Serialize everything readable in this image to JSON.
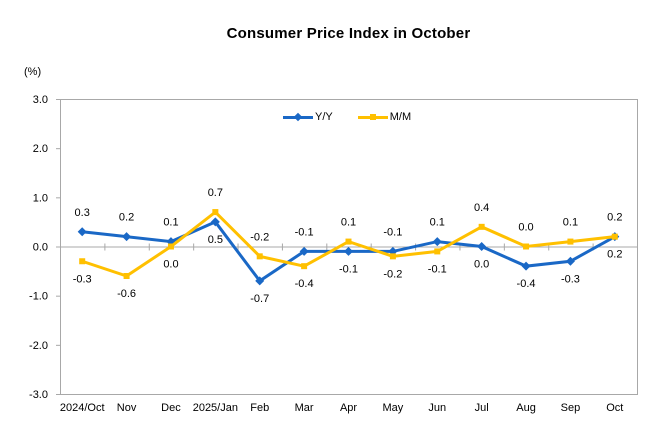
{
  "title": "Consumer Price Index in October",
  "unit_label": "(%)",
  "chart_data": {
    "type": "line",
    "title": "Consumer Price Index in October",
    "ylabel": "(%)",
    "categories": [
      "2024/Oct",
      "Nov",
      "Dec",
      "2025/Jan",
      "Feb",
      "Mar",
      "Apr",
      "May",
      "Jun",
      "Jul",
      "Aug",
      "Sep",
      "Oct"
    ],
    "series": [
      {
        "name": "Y/Y",
        "color": "#1a68c6",
        "marker": "diamond",
        "values": [
          0.3,
          0.2,
          0.1,
          0.5,
          -0.7,
          -0.1,
          -0.1,
          -0.1,
          0.1,
          0.0,
          -0.4,
          -0.3,
          0.2
        ],
        "label_positions": [
          "above",
          "above",
          "above",
          "below",
          "below",
          "above",
          "below",
          "above",
          "above",
          "below",
          "below",
          "below",
          "below"
        ]
      },
      {
        "name": "M/M",
        "color": "#ffc000",
        "marker": "square",
        "values": [
          -0.3,
          -0.6,
          0.0,
          0.7,
          -0.2,
          -0.4,
          0.1,
          -0.2,
          -0.1,
          0.4,
          0.0,
          0.1,
          0.2
        ],
        "label_positions": [
          "below",
          "below",
          "below",
          "above",
          "above",
          "below",
          "above",
          "below",
          "below",
          "above",
          "above",
          "above",
          "above"
        ]
      }
    ],
    "ylim": [
      -3.0,
      3.0
    ],
    "ytick_values": [
      3.0,
      2.0,
      1.0,
      0.0,
      -1.0,
      -2.0,
      -3.0
    ],
    "ytick_labels": [
      "3.0",
      "2.0",
      "1.0",
      "0.0",
      "-1.0",
      "-2.0",
      "-3.0"
    ],
    "grid": "zero-line-only",
    "legend_position": "top-center",
    "axis_color": "#a8a8a8",
    "text_color": "#000000"
  }
}
